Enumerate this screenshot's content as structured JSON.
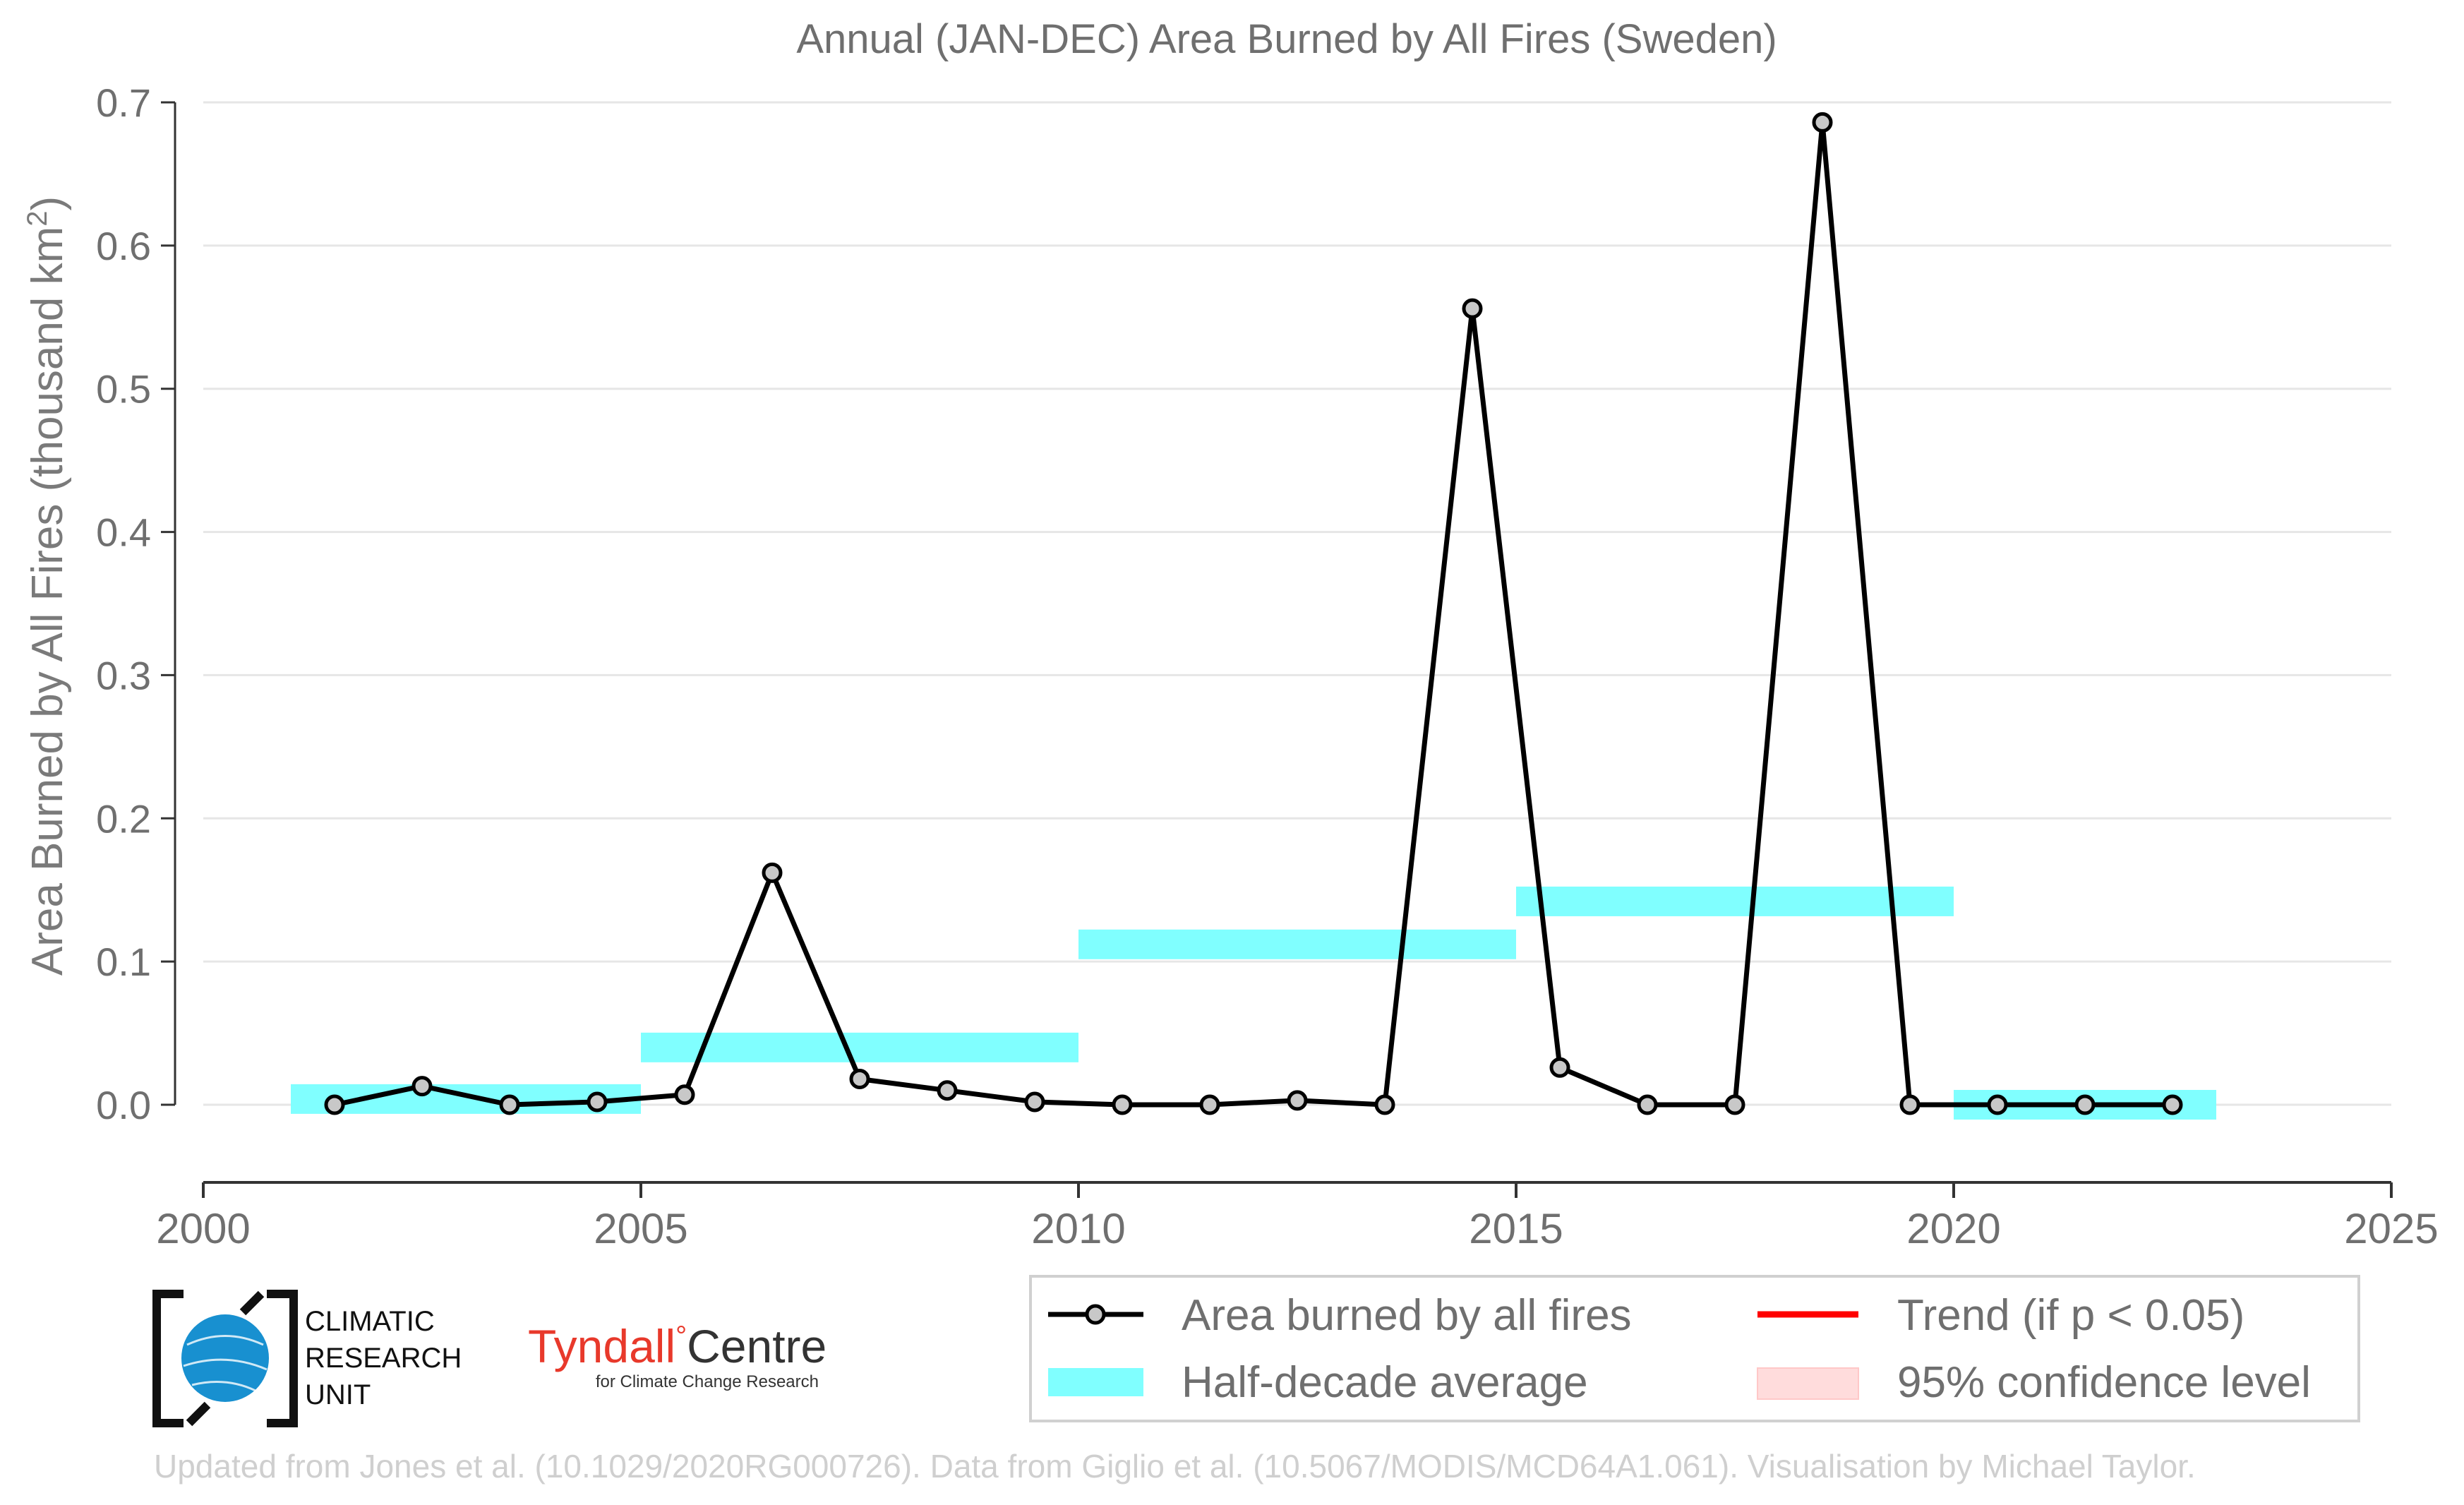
{
  "chart_data": {
    "type": "line",
    "title": "Annual (JAN-DEC) Area Burned by All Fires (Sweden)",
    "ylabel": "Area Burned by All Fires (thousand km",
    "ylabel_superscript": "2",
    "ylabel_close": ")",
    "xlabel": "",
    "xlim": [
      2000,
      2025
    ],
    "ylim": [
      -0.055,
      0.7
    ],
    "xticks": [
      "2000",
      "2005",
      "2010",
      "2015",
      "2020",
      "2025"
    ],
    "yticks": [
      "0.0",
      "0.1",
      "0.2",
      "0.3",
      "0.4",
      "0.5",
      "0.6",
      "0.7"
    ],
    "grid": "horizontal",
    "legend_position": "bottom-right",
    "series": [
      {
        "name": "Area burned by all fires",
        "color": "#000000",
        "marker_fill": "#c8c8c8",
        "x": [
          2001.5,
          2002.5,
          2003.5,
          2004.5,
          2005.5,
          2006.5,
          2007.5,
          2008.5,
          2009.5,
          2010.5,
          2011.5,
          2012.5,
          2013.5,
          2014.5,
          2015.5,
          2016.5,
          2017.5,
          2018.5,
          2019.5,
          2020.5,
          2021.5,
          2022.5
        ],
        "y": [
          0.0,
          0.013,
          0.0,
          0.002,
          0.007,
          0.162,
          0.018,
          0.01,
          0.002,
          0.0,
          0.0,
          0.003,
          0.0,
          0.556,
          0.026,
          0.0,
          0.0,
          0.686,
          0.0,
          0.0,
          0.0,
          0.0
        ]
      }
    ],
    "half_decade_averages": {
      "name": "Half-decade average",
      "color": "#80ffff",
      "segments": [
        {
          "start": 2001,
          "end": 2005,
          "value": 0.004
        },
        {
          "start": 2005,
          "end": 2010,
          "value": 0.04
        },
        {
          "start": 2010,
          "end": 2015,
          "value": 0.112
        },
        {
          "start": 2015,
          "end": 2020,
          "value": 0.142
        },
        {
          "start": 2020,
          "end": 2023,
          "value": 0.0
        }
      ]
    },
    "legend": [
      {
        "label": "Area burned by all fires",
        "kind": "line-marker",
        "color": "#000000"
      },
      {
        "label": "Trend (if p < 0.05)",
        "kind": "line",
        "color": "#ff0000"
      },
      {
        "label": "Half-decade average",
        "kind": "band",
        "color": "#80ffff"
      },
      {
        "label": "95% confidence level",
        "kind": "patch",
        "color": "#ffdcdc"
      }
    ]
  },
  "logos": {
    "cru_lines": [
      "CLIMATIC",
      "RESEARCH",
      "UNIT"
    ],
    "tyndall_main": "Tyndall",
    "tyndall_degree": "°",
    "tyndall_centre": "Centre",
    "tyndall_sub": "for Climate Change Research"
  },
  "credit": "Updated from Jones et al. (10.1029/2020RG000726). Data from Giglio et al. (10.5067/MODIS/MCD64A1.061). Visualisation by Michael Taylor."
}
